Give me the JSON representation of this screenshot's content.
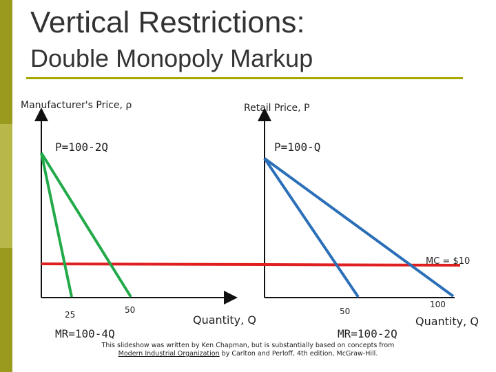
{
  "title": {
    "line1": "Vertical Restrictions:",
    "line2": "Double Monopoly Markup"
  },
  "left_panel": {
    "axis_label_y": "Manufacturer's Price, ρ",
    "demand_label": "P=100-2Q",
    "mr_label": "MR=100-4Q",
    "tick_25": "25",
    "tick_50": "50"
  },
  "right_panel": {
    "axis_label_y": "Retail Price, P",
    "demand_label": "P=100-Q",
    "mr_label": "MR=100-2Q",
    "tick_50": "50",
    "tick_100": "100",
    "axis_label_x": "Quantity, Q"
  },
  "center_axis_label_x": "Quantity, Q",
  "mc_label": "MC = $10",
  "colors": {
    "green": "#22aa4a",
    "blue": "#2a6fb8",
    "red": "#e02020",
    "axis": "#111111",
    "bar": "#9a9a1e"
  },
  "footer": {
    "line1": "This slideshow was written by Ken Chapman, but is substantially based on concepts from",
    "line2_link": "Modern Industrial Organization",
    "line2_rest": "by Carlton and Perloff, 4th edition, McGraw-Hill."
  }
}
